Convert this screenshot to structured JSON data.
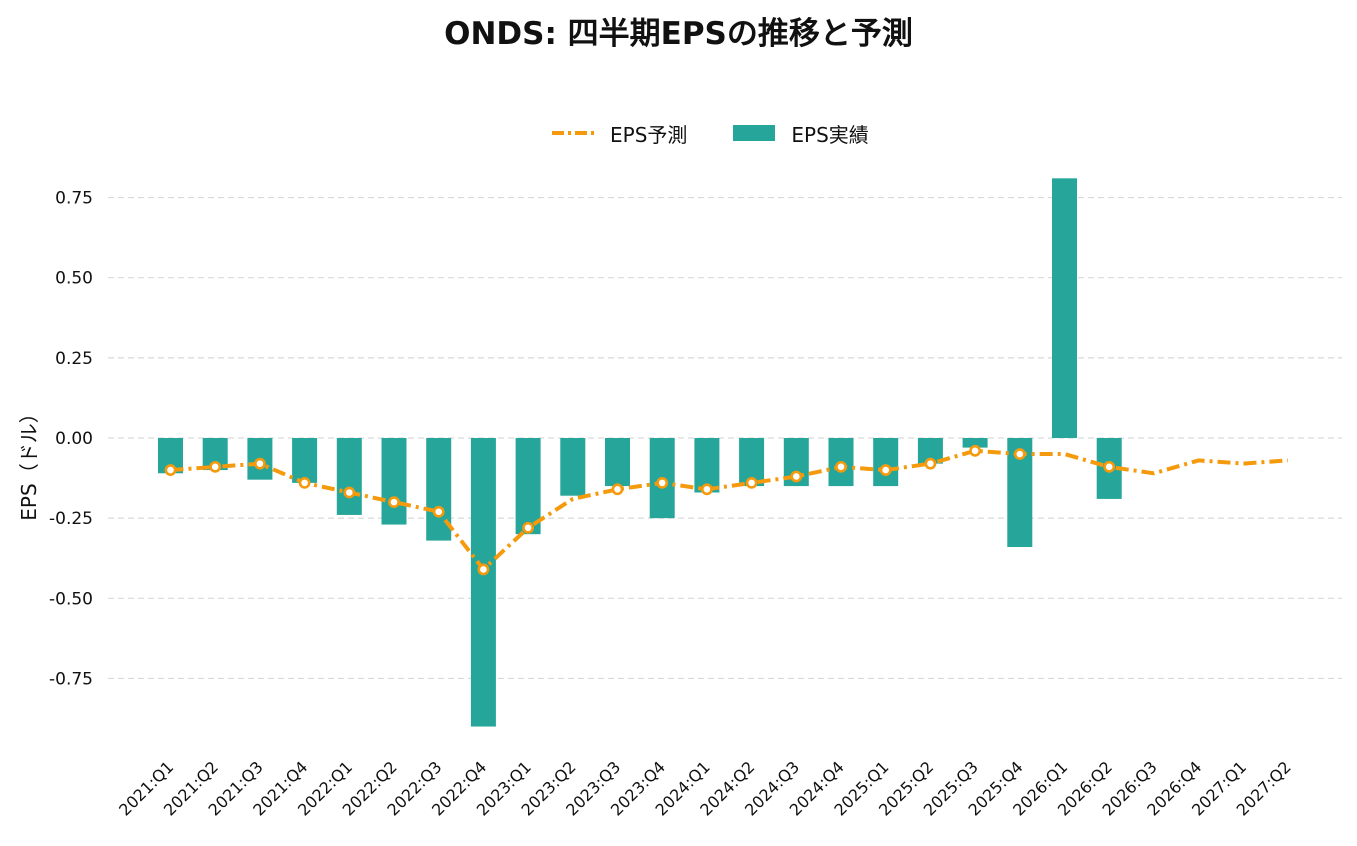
{
  "chart_data": {
    "type": "bar",
    "title": "ONDS: 四半期EPSの推移と予測",
    "xlabel": "",
    "ylabel": "EPS（ドル）",
    "ylim": [
      -0.93,
      0.8
    ],
    "yticks": [
      0.75,
      0.5,
      0.25,
      0.0,
      -0.25,
      -0.5,
      -0.75
    ],
    "ytick_labels": [
      "0.75",
      "0.50",
      "0.25",
      "0.00",
      "-0.25",
      "-0.50",
      "-0.75"
    ],
    "grid": "horizontal dashed",
    "legend_position": "top-center",
    "categories": [
      "2021:Q1",
      "2021:Q2",
      "2021:Q3",
      "2021:Q4",
      "2022:Q1",
      "2022:Q2",
      "2022:Q3",
      "2022:Q4",
      "2023:Q1",
      "2023:Q2",
      "2023:Q3",
      "2023:Q4",
      "2024:Q1",
      "2024:Q2",
      "2024:Q3",
      "2024:Q4",
      "2025:Q1",
      "2025:Q2",
      "2025:Q3",
      "2025:Q4",
      "2026:Q1",
      "2026:Q2",
      "2026:Q3",
      "2026:Q4",
      "2027:Q1",
      "2027:Q2"
    ],
    "series": [
      {
        "name": "EPS予測",
        "type": "line",
        "color": "#f59a0c",
        "values": [
          -0.1,
          -0.09,
          -0.08,
          -0.14,
          -0.17,
          -0.2,
          -0.23,
          -0.41,
          -0.28,
          -0.19,
          -0.16,
          -0.14,
          -0.16,
          -0.14,
          -0.12,
          -0.09,
          -0.1,
          -0.08,
          -0.04,
          -0.05,
          -0.05,
          -0.09,
          -0.11,
          -0.07,
          -0.08,
          -0.07
        ],
        "markers": [
          true,
          true,
          true,
          true,
          true,
          true,
          true,
          true,
          true,
          false,
          true,
          true,
          true,
          true,
          true,
          true,
          true,
          true,
          true,
          true,
          false,
          true,
          false,
          false,
          false,
          false
        ]
      },
      {
        "name": "EPS実績",
        "type": "bar",
        "color": "#26a69a",
        "values": [
          -0.11,
          -0.1,
          -0.13,
          -0.14,
          -0.24,
          -0.27,
          -0.32,
          -0.9,
          -0.3,
          -0.18,
          -0.15,
          -0.25,
          -0.17,
          -0.15,
          -0.15,
          -0.15,
          -0.15,
          -0.08,
          -0.03,
          -0.34,
          0.81,
          -0.19,
          null,
          null,
          null,
          null
        ]
      }
    ]
  }
}
